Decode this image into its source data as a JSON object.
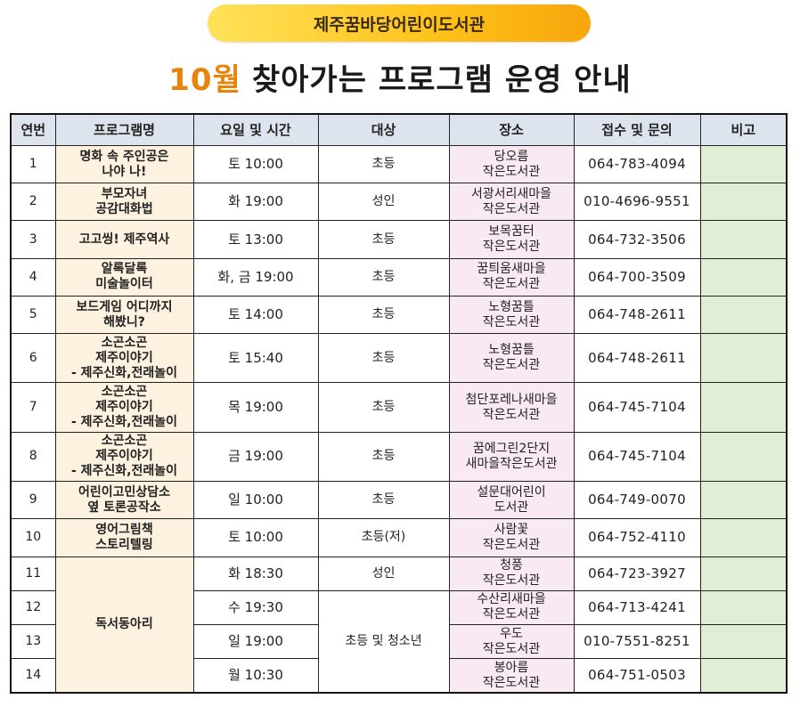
{
  "banner": "제주꿈바당어린이도서관",
  "title": {
    "month": "10월",
    "rest": "찾아가는 프로그램 운영 안내"
  },
  "columns": [
    "연번",
    "프로그램명",
    "요일 및 시간",
    "대상",
    "장소",
    "접수 및 문의",
    "비고"
  ],
  "rows": [
    {
      "no": "1",
      "name": "명화 속 주인공은\n나야 나!",
      "time": "토 10:00",
      "target": "초등",
      "place": "당오름\n작은도서관",
      "contact": "064-783-4094",
      "note": ""
    },
    {
      "no": "2",
      "name": "부모자녀\n공감대화법",
      "time": "화 19:00",
      "target": "성인",
      "place": "서광서리새마을\n작은도서관",
      "contact": "010-4696-9551",
      "note": ""
    },
    {
      "no": "3",
      "name": "고고씽! 제주역사",
      "time": "토 13:00",
      "target": "초등",
      "place": "보목꿈터\n작은도서관",
      "contact": "064-732-3506",
      "note": ""
    },
    {
      "no": "4",
      "name": "알록달록\n미술놀이터",
      "time": "화, 금 19:00",
      "target": "초등",
      "place": "꿈틔움새마을\n작은도서관",
      "contact": "064-700-3509",
      "note": ""
    },
    {
      "no": "5",
      "name": "보드게임 어디까지\n해봤니?",
      "time": "토 14:00",
      "target": "초등",
      "place": "노형꿈틀\n작은도서관",
      "contact": "064-748-2611",
      "note": ""
    },
    {
      "no": "6",
      "name": "소곤소곤\n제주이야기\n- 제주신화,전래놀이",
      "time": "토 15:40",
      "target": "초등",
      "place": "노형꿈틀\n작은도서관",
      "contact": "064-748-2611",
      "note": ""
    },
    {
      "no": "7",
      "name": "소곤소곤\n제주이야기\n- 제주신화,전래놀이",
      "time": "목 19:00",
      "target": "초등",
      "place": "첨단포레나새마을\n작은도서관",
      "contact": "064-745-7104",
      "note": ""
    },
    {
      "no": "8",
      "name": "소곤소곤\n제주이야기\n- 제주신화,전래놀이",
      "time": "금 19:00",
      "target": "초등",
      "place": "꿈에그린2단지\n새마을작은도서관",
      "contact": "064-745-7104",
      "note": ""
    },
    {
      "no": "9",
      "name": "어린이고민상담소\n옆 토론공작소",
      "time": "일 10:00",
      "target": "초등",
      "place": "설문대어린이\n도서관",
      "contact": "064-749-0070",
      "note": ""
    },
    {
      "no": "10",
      "name": "영어그림책\n스토리텔링",
      "time": "토 10:00",
      "target": "초등(저)",
      "place": "사람꽃\n작은도서관",
      "contact": "064-752-4110",
      "note": ""
    }
  ],
  "club": {
    "name": "독서동아리",
    "target_shared": "초등 및 청소년",
    "rows": [
      {
        "no": "11",
        "time": "화 18:30",
        "target": "성인",
        "place": "청풍\n작은도서관",
        "contact": "064-723-3927",
        "note": ""
      },
      {
        "no": "12",
        "time": "수 19:30",
        "place": "수산리새마을\n작은도서관",
        "contact": "064-713-4241",
        "note": ""
      },
      {
        "no": "13",
        "time": "일 19:00",
        "place": "우도\n작은도서관",
        "contact": "010-7551-8251",
        "note": ""
      },
      {
        "no": "14",
        "time": "월 10:30",
        "place": "봉아름\n작은도서관",
        "contact": "064-751-0503",
        "note": ""
      }
    ]
  }
}
